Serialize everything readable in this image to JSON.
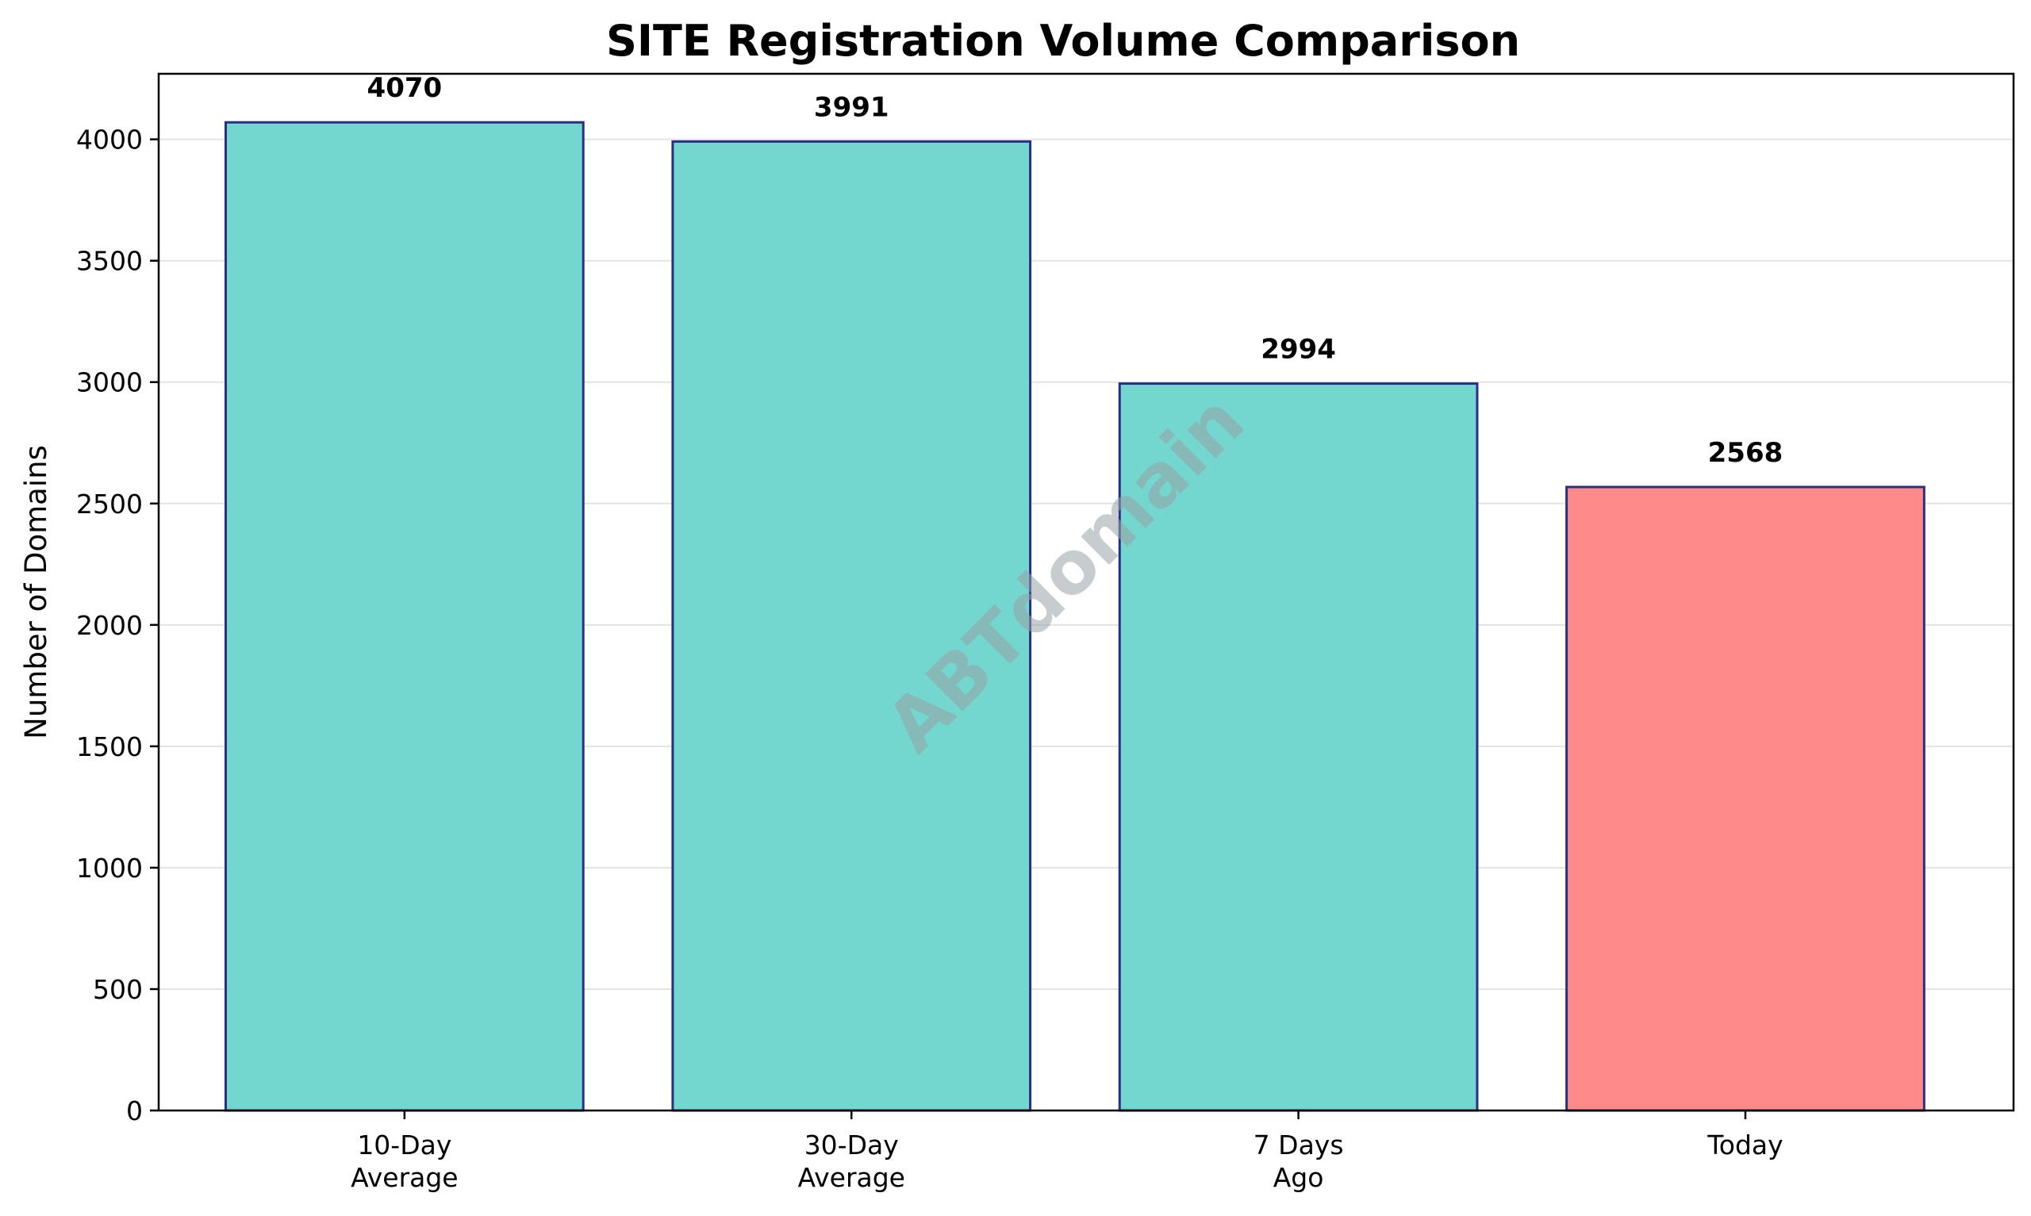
{
  "chart_data": {
    "type": "bar",
    "title": "SITE Registration Volume Comparison",
    "xlabel": "",
    "ylabel": "Number of Domains",
    "categories": [
      [
        "10-Day",
        "Average"
      ],
      [
        "30-Day",
        "Average"
      ],
      [
        "7 Days",
        "Ago"
      ],
      [
        "Today"
      ]
    ],
    "values": [
      4070,
      3991,
      2994,
      2568
    ],
    "data_labels": [
      "4070",
      "3991",
      "2994",
      "2568"
    ],
    "bar_colors": [
      "#73d6cf",
      "#73d6cf",
      "#73d6cf",
      "#ff8a8a"
    ],
    "bar_edge_color": "#2a2f86",
    "ylim": [
      0,
      4270
    ],
    "yticks": [
      0,
      500,
      1000,
      1500,
      2000,
      2500,
      3000,
      3500,
      4000
    ],
    "grid": "horizontal",
    "legend": "none"
  },
  "watermark": "ABTdomain"
}
